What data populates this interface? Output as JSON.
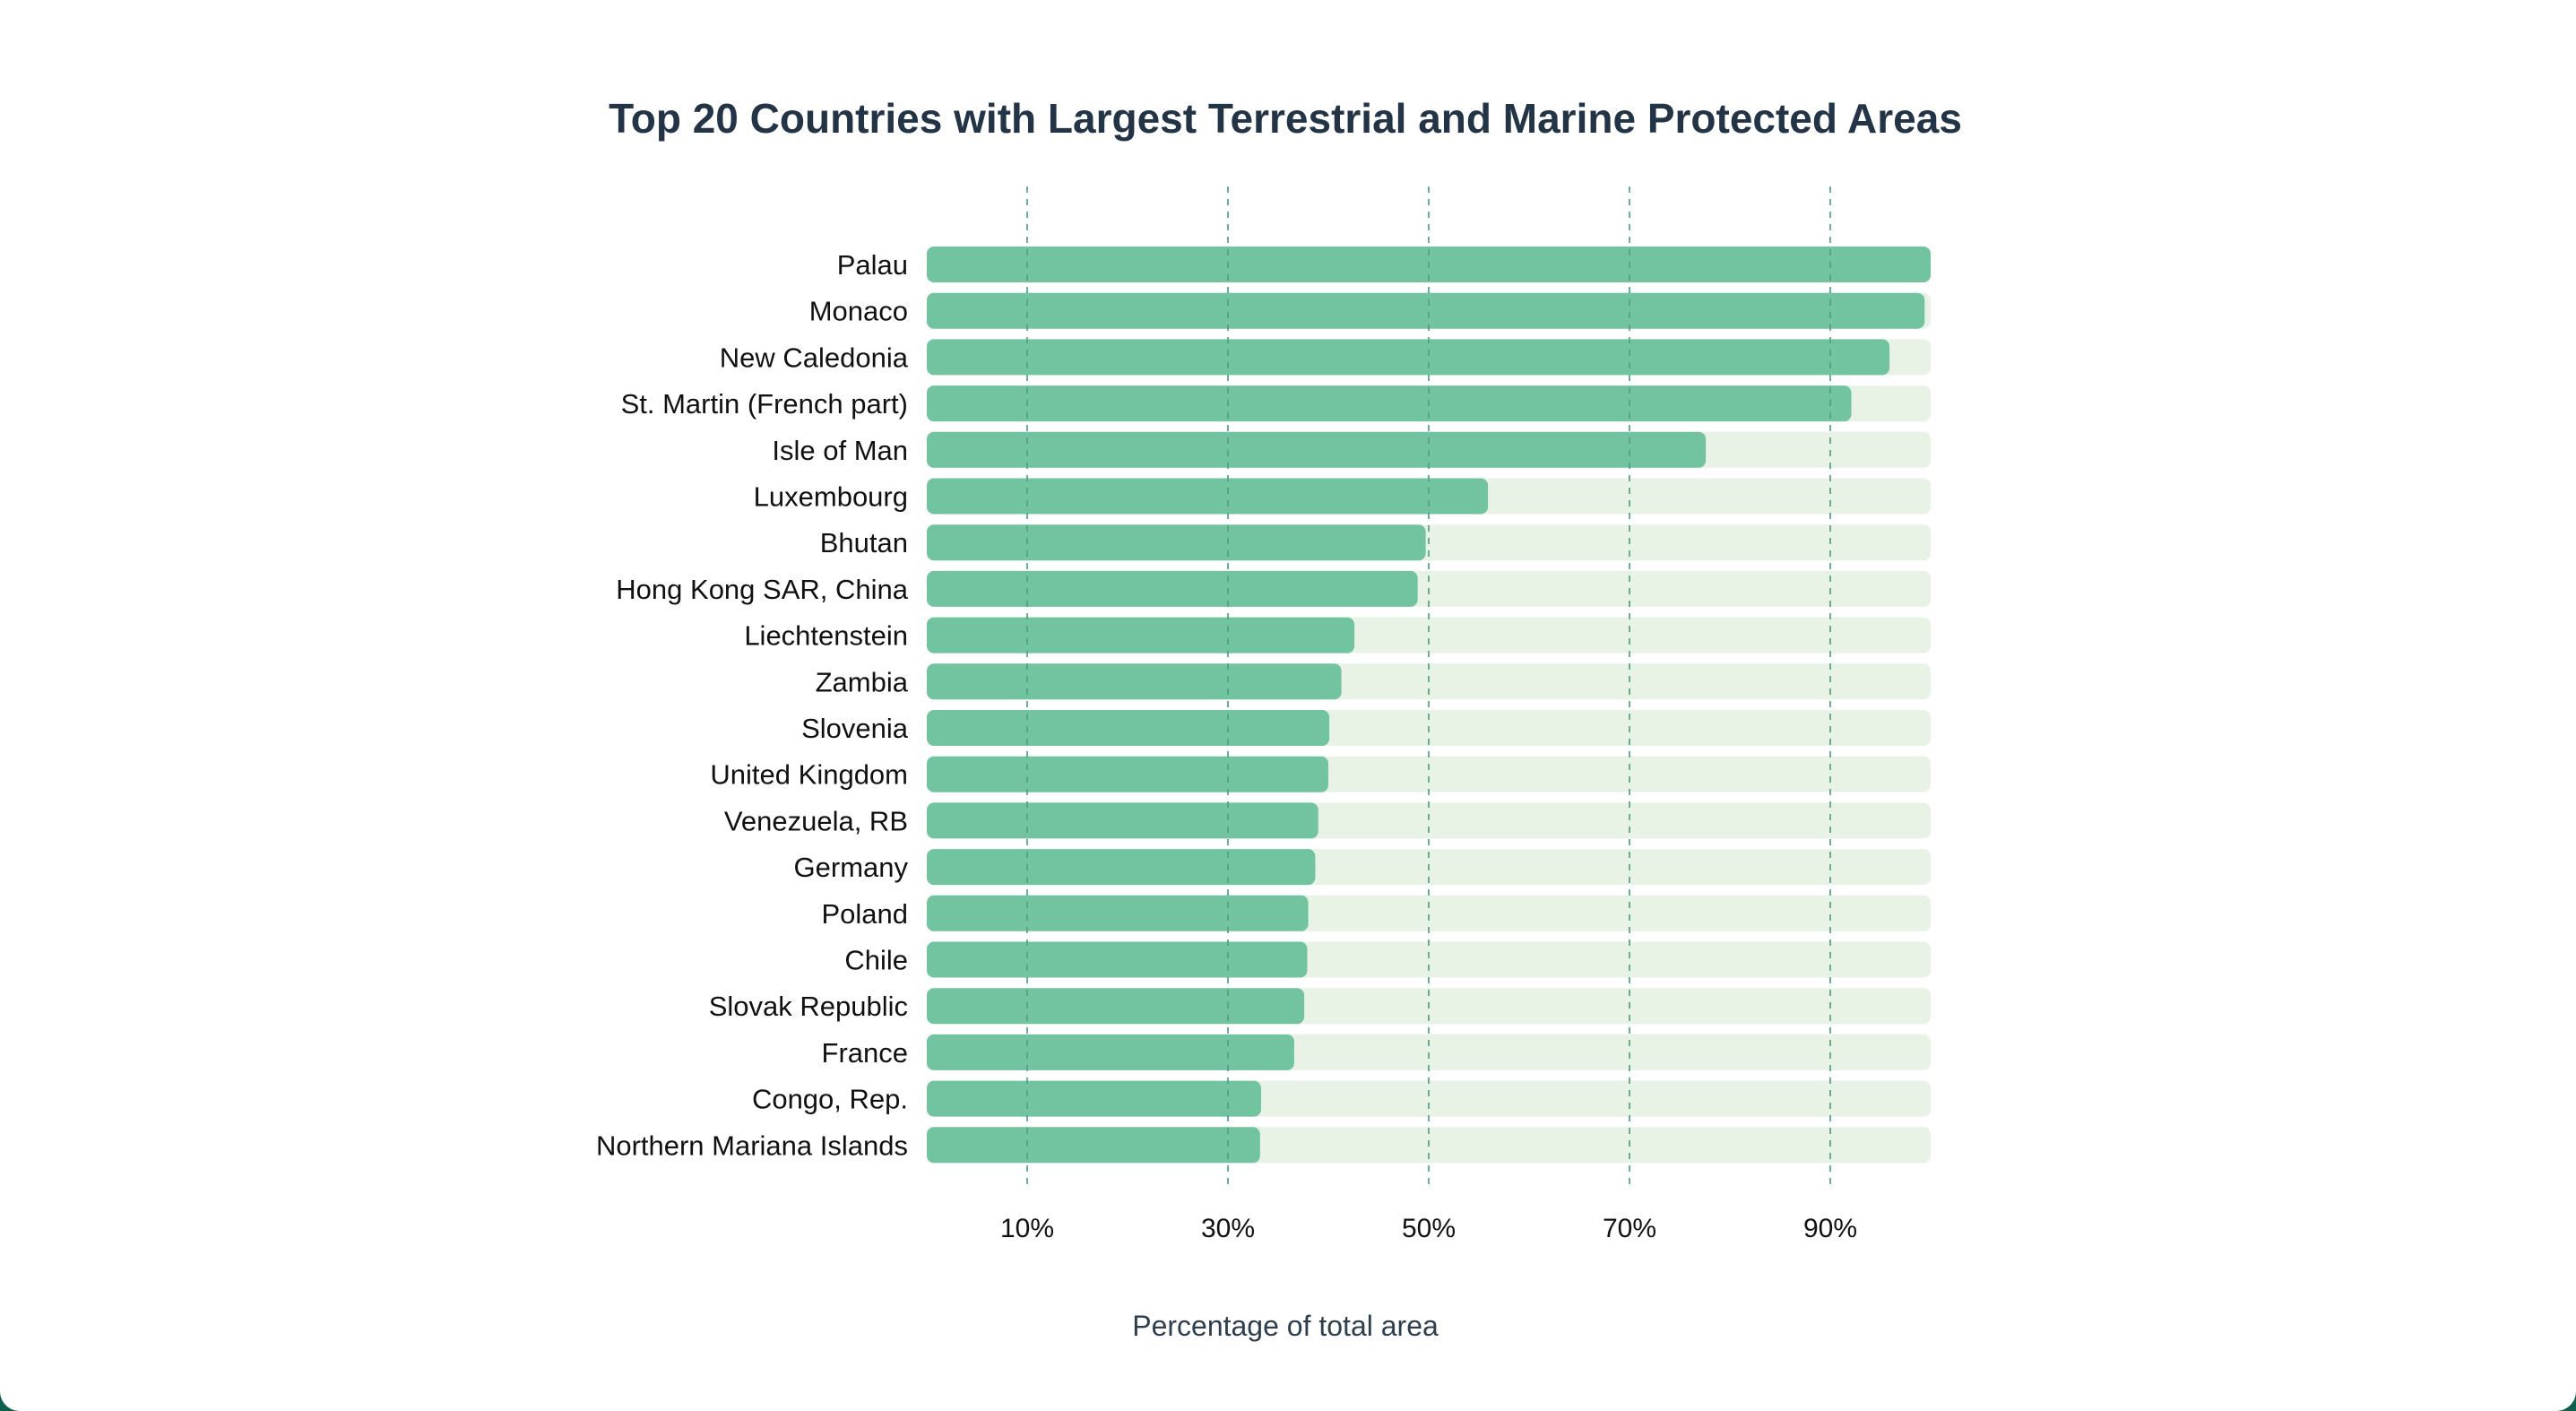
{
  "colors": {
    "bar": "#72c4a0",
    "track": "#e8f2e5",
    "grid": "#4fa383",
    "title": "#243447",
    "page_border": "#0f5f4f"
  },
  "chart_data": {
    "type": "bar",
    "orientation": "horizontal",
    "title": "Top 20 Countries with Largest Terrestrial and Marine Protected Areas",
    "xlabel": "Percentage of total area",
    "ylabel": "",
    "xlim": [
      0,
      100
    ],
    "x_ticks": [
      10,
      30,
      50,
      70,
      90
    ],
    "x_tick_labels": [
      "10%",
      "30%",
      "50%",
      "70%",
      "90%"
    ],
    "grid": "vertical dashed at ticks",
    "background_track": true,
    "categories": [
      "Palau",
      "Monaco",
      "New Caledonia",
      "St. Martin (French part)",
      "Isle of Man",
      "Luxembourg",
      "Bhutan",
      "Hong Kong SAR, China",
      "Liechtenstein",
      "Zambia",
      "Slovenia",
      "United Kingdom",
      "Venezuela, RB",
      "Germany",
      "Poland",
      "Chile",
      "Slovak Republic",
      "France",
      "Congo, Rep.",
      "Northern Mariana Islands"
    ],
    "values": [
      100,
      99.4,
      95.9,
      92.1,
      77.6,
      55.9,
      49.7,
      48.9,
      42.6,
      41.3,
      40.1,
      40.0,
      39.0,
      38.7,
      38.0,
      37.9,
      37.6,
      36.6,
      33.3,
      33.2
    ]
  }
}
